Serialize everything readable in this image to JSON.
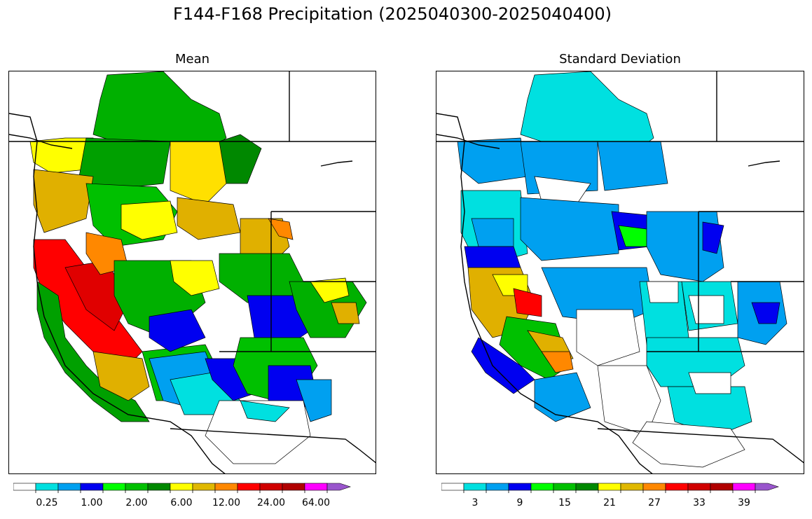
{
  "title": "F144-F168 Precipitation (2025040300-2025040400)",
  "panels": [
    {
      "id": "mean",
      "title": "Mean"
    },
    {
      "id": "std",
      "title": "Standard Deviation"
    }
  ],
  "colorbars": {
    "mean": {
      "colors": [
        "#ffffff",
        "#00e0e0",
        "#00a0f0",
        "#0000f0",
        "#00ff00",
        "#00c000",
        "#008800",
        "#ffff00",
        "#e0b800",
        "#ff8800",
        "#ff0000",
        "#d00000",
        "#b00000",
        "#ff00ff",
        "#9955cc"
      ],
      "tick_labels": [
        "0.25",
        "1.00",
        "2.00",
        "6.00",
        "12.00",
        "24.00",
        "64.00"
      ],
      "tick_label_positions": [
        1,
        3,
        5,
        7,
        9,
        11,
        13
      ]
    },
    "std": {
      "colors": [
        "#ffffff",
        "#00e0e0",
        "#00a0f0",
        "#0000f0",
        "#00ff00",
        "#00c000",
        "#008800",
        "#ffff00",
        "#e0b800",
        "#ff8800",
        "#ff0000",
        "#d00000",
        "#b00000",
        "#ff00ff",
        "#9955cc"
      ],
      "tick_labels": [
        "3",
        "9",
        "15",
        "21",
        "27",
        "33",
        "39"
      ],
      "tick_label_positions": [
        1,
        3,
        5,
        7,
        9,
        11,
        13
      ]
    }
  }
}
